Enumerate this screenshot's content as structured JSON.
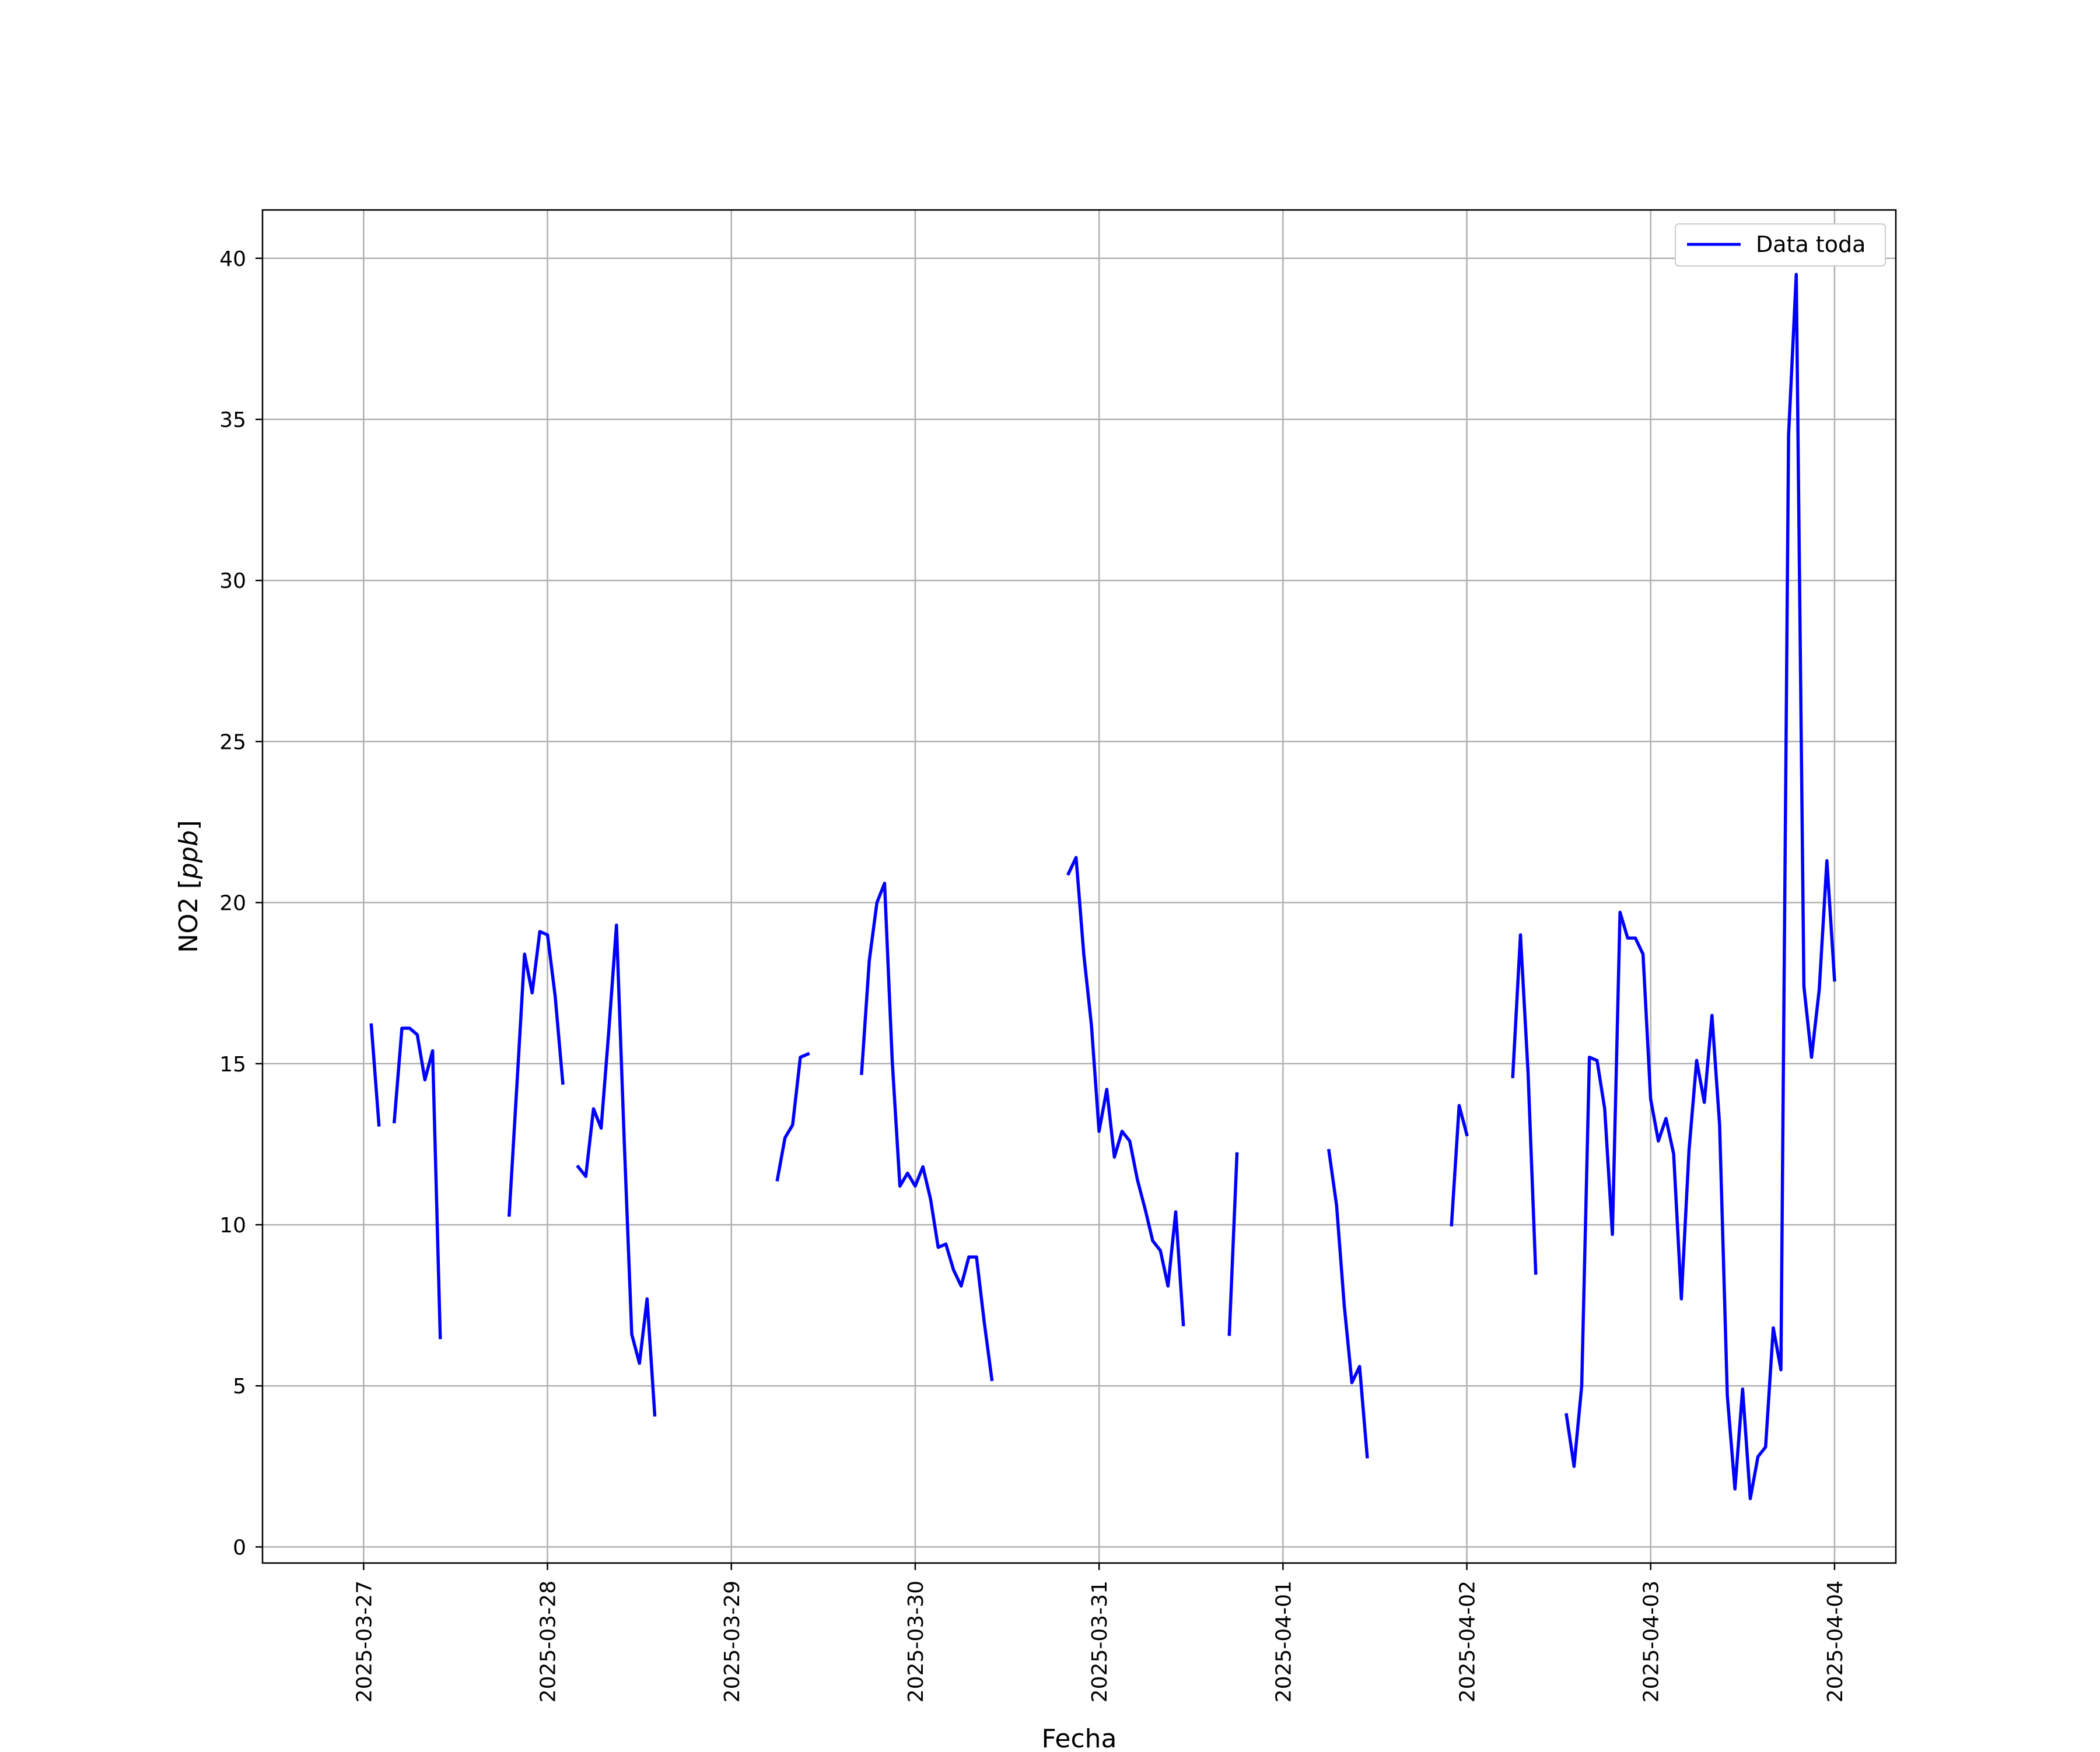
{
  "chart_data": {
    "type": "line",
    "title": "",
    "xlabel": "Fecha",
    "ylabel_text": "NO2 [",
    "ylabel_unit": "ppb",
    "ylabel_close": "]",
    "ylabel": "NO2 [ppb]",
    "x_ticks": [
      "2025-03-27",
      "2025-03-28",
      "2025-03-29",
      "2025-03-30",
      "2025-03-31",
      "2025-04-01",
      "2025-04-02",
      "2025-04-03",
      "2025-04-04"
    ],
    "y_ticks": [
      0,
      5,
      10,
      15,
      20,
      25,
      30,
      35,
      40
    ],
    "ylim": [
      -0.5,
      41.5
    ],
    "xlim": [
      "2025-03-26T10:48",
      "2025-04-04T08:00"
    ],
    "grid": true,
    "legend_position": "top-right",
    "series": [
      {
        "name": "Data toda",
        "color": "#0000ff",
        "segments": [
          [
            [
              "2025-03-27T01:00",
              16.2
            ],
            [
              "2025-03-27T02:00",
              13.1
            ]
          ],
          [
            [
              "2025-03-27T04:00",
              13.2
            ],
            [
              "2025-03-27T05:00",
              16.1
            ],
            [
              "2025-03-27T06:00",
              16.1
            ],
            [
              "2025-03-27T07:00",
              15.9
            ],
            [
              "2025-03-27T08:00",
              14.5
            ],
            [
              "2025-03-27T09:00",
              15.4
            ],
            [
              "2025-03-27T10:00",
              6.5
            ]
          ],
          [
            [
              "2025-03-27T19:00",
              10.3
            ],
            [
              "2025-03-27T20:00",
              14.3
            ],
            [
              "2025-03-27T21:00",
              18.4
            ],
            [
              "2025-03-27T22:00",
              17.2
            ],
            [
              "2025-03-27T23:00",
              19.1
            ],
            [
              "2025-03-28T00:00",
              19.0
            ],
            [
              "2025-03-28T01:00",
              17.1
            ],
            [
              "2025-03-28T02:00",
              14.4
            ]
          ],
          [
            [
              "2025-03-28T04:00",
              11.8
            ],
            [
              "2025-03-28T05:00",
              11.5
            ],
            [
              "2025-03-28T06:00",
              13.6
            ],
            [
              "2025-03-28T07:00",
              13.0
            ],
            [
              "2025-03-28T08:00",
              16.0
            ],
            [
              "2025-03-28T09:00",
              19.3
            ],
            [
              "2025-03-28T10:00",
              12.7
            ],
            [
              "2025-03-28T11:00",
              6.6
            ],
            [
              "2025-03-28T12:00",
              5.7
            ],
            [
              "2025-03-28T13:00",
              7.7
            ],
            [
              "2025-03-28T14:00",
              4.1
            ]
          ],
          [
            [
              "2025-03-29T06:00",
              11.4
            ],
            [
              "2025-03-29T07:00",
              12.7
            ],
            [
              "2025-03-29T08:00",
              13.1
            ],
            [
              "2025-03-29T09:00",
              15.2
            ],
            [
              "2025-03-29T10:00",
              15.3
            ]
          ],
          [
            [
              "2025-03-29T17:00",
              14.7
            ],
            [
              "2025-03-29T18:00",
              18.2
            ],
            [
              "2025-03-29T19:00",
              20.0
            ],
            [
              "2025-03-29T20:00",
              20.6
            ],
            [
              "2025-03-29T21:00",
              15.1
            ],
            [
              "2025-03-29T22:00",
              11.2
            ],
            [
              "2025-03-29T23:00",
              11.6
            ],
            [
              "2025-03-30T00:00",
              11.2
            ],
            [
              "2025-03-30T01:00",
              11.8
            ],
            [
              "2025-03-30T02:00",
              10.8
            ],
            [
              "2025-03-30T03:00",
              9.3
            ],
            [
              "2025-03-30T04:00",
              9.4
            ],
            [
              "2025-03-30T05:00",
              8.6
            ],
            [
              "2025-03-30T06:00",
              8.1
            ],
            [
              "2025-03-30T07:00",
              9.0
            ],
            [
              "2025-03-30T08:00",
              9.0
            ],
            [
              "2025-03-30T09:00",
              7.0
            ],
            [
              "2025-03-30T10:00",
              5.2
            ]
          ],
          [
            [
              "2025-03-30T20:00",
              20.9
            ],
            [
              "2025-03-30T21:00",
              21.4
            ],
            [
              "2025-03-30T22:00",
              18.4
            ],
            [
              "2025-03-30T23:00",
              16.2
            ],
            [
              "2025-03-31T00:00",
              12.9
            ],
            [
              "2025-03-31T01:00",
              14.2
            ],
            [
              "2025-03-31T02:00",
              12.1
            ],
            [
              "2025-03-31T03:00",
              12.9
            ],
            [
              "2025-03-31T04:00",
              12.6
            ],
            [
              "2025-03-31T05:00",
              11.4
            ],
            [
              "2025-03-31T06:00",
              10.5
            ],
            [
              "2025-03-31T07:00",
              9.5
            ],
            [
              "2025-03-31T08:00",
              9.2
            ],
            [
              "2025-03-31T09:00",
              8.1
            ],
            [
              "2025-03-31T10:00",
              10.4
            ],
            [
              "2025-03-31T11:00",
              6.9
            ]
          ],
          [
            [
              "2025-03-31T17:00",
              6.6
            ],
            [
              "2025-03-31T18:00",
              12.2
            ]
          ],
          [
            [
              "2025-04-01T06:00",
              12.3
            ],
            [
              "2025-04-01T07:00",
              10.6
            ],
            [
              "2025-04-01T08:00",
              7.5
            ],
            [
              "2025-04-01T09:00",
              5.1
            ],
            [
              "2025-04-01T10:00",
              5.6
            ],
            [
              "2025-04-01T11:00",
              2.8
            ]
          ],
          [
            [
              "2025-04-01T22:00",
              10.0
            ],
            [
              "2025-04-01T23:00",
              13.7
            ],
            [
              "2025-04-02T00:00",
              12.8
            ]
          ],
          [
            [
              "2025-04-02T06:00",
              14.6
            ],
            [
              "2025-04-02T07:00",
              19.0
            ],
            [
              "2025-04-02T08:00",
              14.7
            ],
            [
              "2025-04-02T09:00",
              8.5
            ]
          ],
          [
            [
              "2025-04-02T13:00",
              4.1
            ],
            [
              "2025-04-02T14:00",
              2.5
            ],
            [
              "2025-04-02T15:00",
              5.0
            ],
            [
              "2025-04-02T16:00",
              15.2
            ],
            [
              "2025-04-02T17:00",
              15.1
            ],
            [
              "2025-04-02T18:00",
              13.6
            ],
            [
              "2025-04-02T19:00",
              9.7
            ],
            [
              "2025-04-02T20:00",
              19.7
            ],
            [
              "2025-04-02T21:00",
              18.9
            ],
            [
              "2025-04-02T22:00",
              18.9
            ],
            [
              "2025-04-02T23:00",
              18.4
            ],
            [
              "2025-04-03T00:00",
              13.9
            ],
            [
              "2025-04-03T01:00",
              12.6
            ],
            [
              "2025-04-03T02:00",
              13.3
            ],
            [
              "2025-04-03T03:00",
              12.2
            ],
            [
              "2025-04-03T04:00",
              7.7
            ],
            [
              "2025-04-03T05:00",
              12.3
            ],
            [
              "2025-04-03T06:00",
              15.1
            ],
            [
              "2025-04-03T07:00",
              13.8
            ],
            [
              "2025-04-03T08:00",
              16.5
            ],
            [
              "2025-04-03T09:00",
              13.1
            ],
            [
              "2025-04-03T10:00",
              4.7
            ],
            [
              "2025-04-03T11:00",
              1.8
            ],
            [
              "2025-04-03T12:00",
              4.9
            ],
            [
              "2025-04-03T13:00",
              1.5
            ],
            [
              "2025-04-03T14:00",
              2.8
            ],
            [
              "2025-04-03T15:00",
              3.1
            ],
            [
              "2025-04-03T16:00",
              6.8
            ],
            [
              "2025-04-03T17:00",
              5.5
            ],
            [
              "2025-04-03T18:00",
              34.5
            ],
            [
              "2025-04-03T19:00",
              39.5
            ],
            [
              "2025-04-03T20:00",
              17.4
            ],
            [
              "2025-04-03T21:00",
              15.2
            ],
            [
              "2025-04-03T22:00",
              17.3
            ],
            [
              "2025-04-03T23:00",
              21.3
            ],
            [
              "2025-04-04T00:00",
              17.6
            ]
          ]
        ]
      }
    ]
  }
}
